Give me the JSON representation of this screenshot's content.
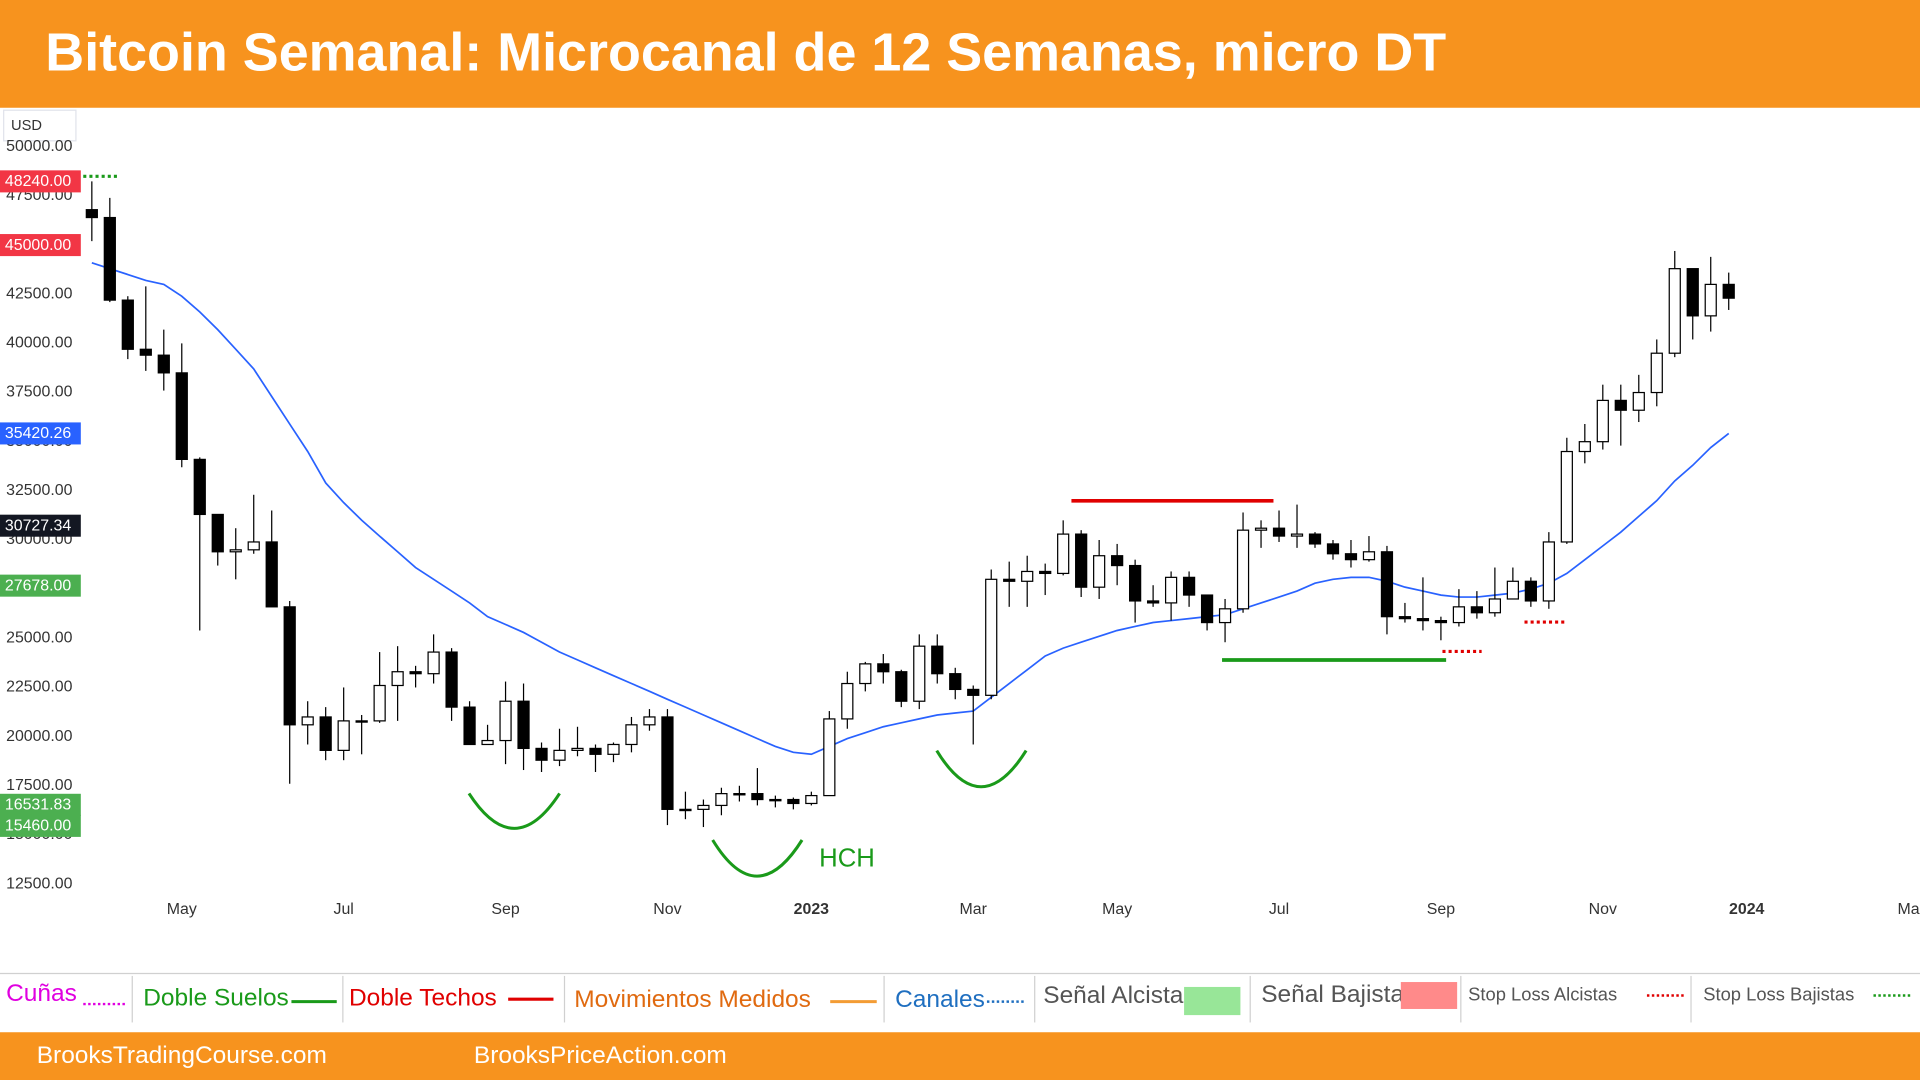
{
  "chart_data": {
    "type": "candlestick",
    "title": "Bitcoin Semanal: Microcanal de 12 Semanas, micro DT",
    "currency": "USD",
    "categories": [
      null,
      null,
      null,
      null,
      null,
      "May",
      null,
      null,
      null,
      null,
      null,
      null,
      null,
      null,
      "Jul",
      null,
      null,
      null,
      null,
      null,
      null,
      null,
      null,
      "Sep",
      null,
      null,
      null,
      null,
      null,
      null,
      null,
      null,
      "Nov",
      null,
      null,
      null,
      null,
      null,
      null,
      null,
      "2023",
      null,
      null,
      null,
      null,
      null,
      null,
      null,
      null,
      "Mar",
      null,
      null,
      null,
      null,
      null,
      null,
      null,
      "May",
      null,
      null,
      null,
      null,
      null,
      null,
      null,
      null,
      "Jul",
      null,
      null,
      null,
      null,
      null,
      null,
      null,
      null,
      "Sep",
      null,
      null,
      null,
      null,
      null,
      null,
      null,
      null,
      "Nov",
      null,
      null,
      null,
      null,
      null,
      null,
      null,
      "2024",
      null,
      null,
      null,
      null,
      null,
      null,
      null,
      null,
      "Ma"
    ],
    "open": [
      46800,
      46400,
      42200,
      39700,
      39400,
      38500,
      34100,
      31300,
      29400,
      29500,
      29900,
      26600,
      20600,
      21000,
      19300,
      20800,
      20800,
      22600,
      23300,
      23200,
      24300,
      21500,
      19600,
      19800,
      21800,
      19400,
      18800,
      19300,
      19400,
      19100,
      19600,
      20600,
      21000,
      16300,
      16300,
      16500,
      17100,
      17100,
      16800,
      16800,
      16600,
      17000,
      20900,
      22700,
      23700,
      23300,
      21800,
      24600,
      23200,
      22400,
      22100,
      28000,
      27900,
      28400,
      28300,
      30300,
      27600,
      29200,
      28700,
      26900,
      26800,
      28100,
      27200,
      25800,
      26500,
      30500,
      30600,
      30200,
      30300,
      29800,
      29300,
      29000,
      29400,
      26100,
      26000,
      25900,
      25800,
      26600,
      26300,
      27000,
      27900,
      26900,
      29900,
      34500,
      35000,
      37100,
      36600,
      37500,
      39500,
      43800,
      41400,
      43000,
      null,
      null,
      null,
      null,
      null,
      null,
      null,
      null,
      null,
      null
    ],
    "high": [
      48240,
      47400,
      42400,
      42900,
      40700,
      40000,
      34200,
      31300,
      30600,
      32300,
      31500,
      26900,
      21800,
      21500,
      22500,
      21100,
      24300,
      24600,
      23600,
      25200,
      24500,
      21800,
      20600,
      22800,
      22700,
      19700,
      20400,
      20500,
      19600,
      19700,
      21000,
      21400,
      21400,
      17200,
      16800,
      17400,
      17500,
      18400,
      17000,
      16900,
      17200,
      21300,
      23300,
      23800,
      24200,
      23400,
      25200,
      25200,
      23500,
      22600,
      28500,
      28900,
      29200,
      28800,
      31000,
      30500,
      30000,
      29800,
      29000,
      27700,
      28400,
      28400,
      27200,
      27000,
      31400,
      31000,
      31500,
      31800,
      30400,
      30000,
      30000,
      30200,
      29700,
      26800,
      28100,
      26100,
      27500,
      27400,
      28600,
      28600,
      28100,
      30400,
      35200,
      35900,
      37900,
      37900,
      38400,
      40200,
      44700,
      43800,
      44400,
      43600,
      null,
      null,
      null,
      null,
      null,
      null,
      null,
      null,
      null,
      null
    ],
    "low": [
      45200,
      42100,
      39200,
      38600,
      37600,
      33700,
      25400,
      28700,
      28000,
      29300,
      26600,
      17600,
      19600,
      18800,
      18800,
      19100,
      20700,
      20800,
      22500,
      22700,
      20800,
      19600,
      19600,
      18600,
      18300,
      18200,
      18500,
      19000,
      18200,
      18700,
      19200,
      20300,
      15500,
      15800,
      15400,
      16000,
      16700,
      16500,
      16400,
      16300,
      16500,
      17000,
      20400,
      22300,
      22700,
      21500,
      21400,
      22700,
      21900,
      19600,
      21900,
      26600,
      26600,
      27200,
      28200,
      27100,
      27000,
      27700,
      25800,
      26600,
      25900,
      26600,
      25400,
      24800,
      26300,
      29600,
      29900,
      29600,
      29600,
      29000,
      28600,
      28900,
      25200,
      25800,
      25400,
      24900,
      25600,
      26000,
      26100,
      27000,
      26600,
      26500,
      29800,
      33900,
      34600,
      34800,
      36000,
      36800,
      39300,
      40200,
      40600,
      41700,
      null,
      null,
      null,
      null,
      null,
      null,
      null,
      null,
      null,
      null
    ],
    "close": [
      46400,
      42200,
      39700,
      39400,
      38500,
      34100,
      31300,
      29400,
      29500,
      29900,
      26600,
      20600,
      21000,
      19300,
      20800,
      20800,
      22600,
      23300,
      23200,
      24300,
      21500,
      19600,
      19800,
      21800,
      19400,
      18800,
      19300,
      19400,
      19100,
      19600,
      20600,
      21000,
      16300,
      16300,
      16500,
      17100,
      17100,
      16800,
      16800,
      16600,
      17000,
      20900,
      22700,
      23700,
      23300,
      21800,
      24600,
      23200,
      22400,
      22100,
      28000,
      27900,
      28400,
      28300,
      30300,
      27600,
      29200,
      28700,
      26900,
      26800,
      28100,
      27200,
      25800,
      26500,
      30500,
      30600,
      30200,
      30300,
      29800,
      29300,
      29000,
      29400,
      26100,
      26000,
      25900,
      25800,
      26600,
      26300,
      27000,
      27900,
      26900,
      29900,
      34500,
      35000,
      37100,
      36600,
      37500,
      39500,
      43800,
      41400,
      43000,
      42300,
      null,
      null,
      null,
      null,
      null,
      null,
      null,
      null,
      null,
      null
    ],
    "ma": {
      "color": "#2962ff",
      "values": [
        44100,
        43800,
        43500,
        43200,
        43000,
        42400,
        41600,
        40700,
        39700,
        38700,
        37300,
        35900,
        34500,
        32900,
        31900,
        31000,
        30200,
        29400,
        28600,
        28000,
        27400,
        26800,
        26100,
        25700,
        25300,
        24800,
        24300,
        23900,
        23500,
        23100,
        22700,
        22300,
        21900,
        21500,
        21100,
        20700,
        20300,
        19900,
        19500,
        19200,
        19100,
        19500,
        19900,
        20200,
        20500,
        20700,
        20900,
        21100,
        21200,
        21300,
        22000,
        22700,
        23400,
        24100,
        24500,
        24800,
        25100,
        25400,
        25600,
        25800,
        25900,
        26000,
        26100,
        26200,
        26500,
        26800,
        27100,
        27400,
        27800,
        28000,
        28100,
        28100,
        27900,
        27600,
        27400,
        27200,
        27100,
        27100,
        27200,
        27300,
        27500,
        27800,
        28300,
        29000,
        29700,
        30400,
        31200,
        32000,
        33000,
        33800,
        34700,
        35420.26,
        null,
        null,
        null,
        null,
        null,
        null,
        null,
        null,
        null,
        null
      ]
    },
    "up_color": "#ffffff",
    "down_color": "#000000",
    "ylim": [
      10133,
      51984
    ],
    "yticks": [
      {
        "value": 12500,
        "label": "12500.00"
      },
      {
        "value": 15000,
        "label": "15000.00"
      },
      {
        "value": 17500,
        "label": "17500.00"
      },
      {
        "value": 20000,
        "label": "20000.00"
      },
      {
        "value": 22500,
        "label": "22500.00"
      },
      {
        "value": 25000,
        "label": "25000.00"
      },
      {
        "value": 27500,
        "label": "27500.00"
      },
      {
        "value": 30000,
        "label": "30000.00"
      },
      {
        "value": 32500,
        "label": "32500.00"
      },
      {
        "value": 35000,
        "label": "35000.00"
      },
      {
        "value": 37500,
        "label": "37500.00"
      },
      {
        "value": 40000,
        "label": "40000.00"
      },
      {
        "value": 42500,
        "label": "42500.00"
      },
      {
        "value": 45000,
        "label": "45000.00"
      },
      {
        "value": 47500,
        "label": "47500.00"
      },
      {
        "value": 50000,
        "label": "50000.00"
      }
    ],
    "price_labels": [
      {
        "value": 48240,
        "label": "48240.00",
        "color": "#f23645"
      },
      {
        "value": 45000,
        "label": "45000.00",
        "color": "#f23645"
      },
      {
        "value": 35420.26,
        "label": "35420.26",
        "color": "#2962ff"
      },
      {
        "value": 30727.34,
        "label": "30727.34",
        "color": "#131722"
      },
      {
        "value": 27678,
        "label": "27678.00",
        "color": "#4caf50"
      },
      {
        "value": 16531.83,
        "label": "16531.83",
        "color": "#4caf50"
      },
      {
        "value": 15460,
        "label": "15460.00",
        "color": "#4caf50"
      }
    ],
    "annotations": [
      "HCH"
    ]
  },
  "legend": [
    "Cuñas",
    "Doble Suelos",
    "Doble Techos",
    "Movimientos Medidos",
    "Canales",
    "Señal Alcista",
    "Señal Bajista",
    "Stop Loss Alcistas",
    "Stop Loss Bajistas"
  ],
  "footer": [
    "BrooksTradingCourse.com",
    "BrooksPriceAction.com"
  ]
}
